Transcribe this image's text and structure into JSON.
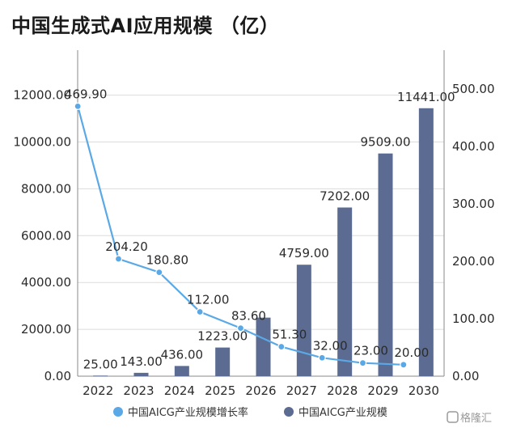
{
  "title": "中国生成式AI应用规模 （亿）",
  "watermark": "格隆汇",
  "colors": {
    "bar": "#5b6b92",
    "line": "#5aa9e6",
    "grid": "#dcdcdc",
    "axis": "#8a8a8a"
  },
  "chart_data": {
    "type": "bar",
    "categories": [
      "2022",
      "2023",
      "2024",
      "2025",
      "2026",
      "2027",
      "2028",
      "2029",
      "2030"
    ],
    "y_left": {
      "min": 0,
      "max": 12000,
      "ticks": [
        "0.00",
        "2000.00",
        "4000.00",
        "6000.00",
        "8000.00",
        "10000.00",
        "12000.00"
      ]
    },
    "y_right": {
      "min": 0,
      "max": 500,
      "ticks": [
        "0.00",
        "100.00",
        "200.00",
        "300.00",
        "400.00",
        "500.00"
      ]
    },
    "grid": true,
    "legend_position": "bottom",
    "series": [
      {
        "name": "中国AICG产业规模",
        "type": "bar",
        "axis": "left",
        "values": [
          25.0,
          143.0,
          436.0,
          1223.0,
          2500.0,
          4759.0,
          7202.0,
          9509.0,
          11441.0
        ],
        "labels": [
          "25.00",
          "143.00",
          "436.00",
          "1223.00",
          "",
          "4759.00",
          "7202.00",
          "9509.00",
          "11441.00"
        ]
      },
      {
        "name": "中国AICG产业规模增长率",
        "type": "line",
        "axis": "right",
        "values": [
          469.9,
          204.2,
          180.8,
          112.0,
          83.6,
          51.3,
          32.0,
          23.0,
          20.0
        ],
        "labels": [
          "469.90",
          "204.20",
          "180.80",
          "112.00",
          "83.60",
          "51.30",
          "32.00",
          "23.00",
          "20.00"
        ]
      }
    ]
  }
}
